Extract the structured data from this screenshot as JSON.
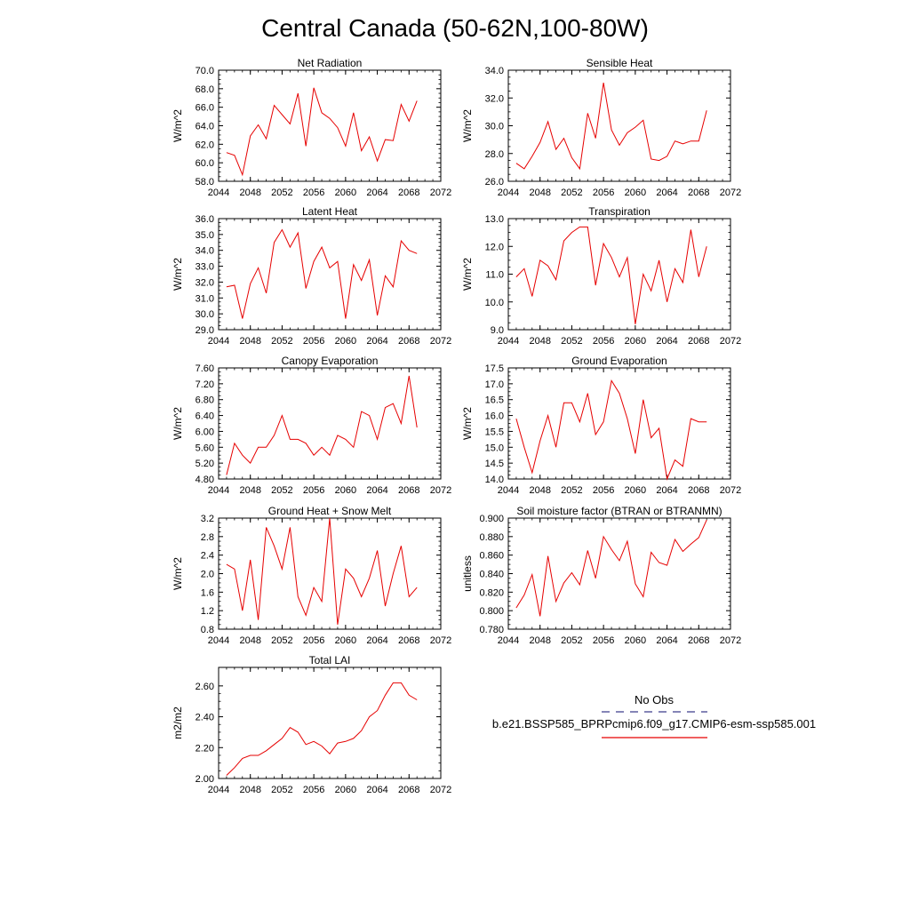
{
  "page_title": "Central Canada (50-62N,100-80W)",
  "legend": {
    "obs_label": "No Obs",
    "obs_color": "#3c3c8c",
    "model_label": "b.e21.BSSP585_BPRPcmip6.f09_g17.CMIP6-esm-ssp585.001",
    "model_color": "#e60000"
  },
  "chart_data": [
    {
      "type": "line",
      "title": "Net Radiation",
      "ylabel": "W/m^2",
      "xlim": [
        2044,
        2072
      ],
      "ylim": [
        58,
        70
      ],
      "xticks": [
        2044,
        2048,
        2052,
        2056,
        2060,
        2064,
        2068,
        2072
      ],
      "xtick_labels": [
        "2044",
        "2048",
        "2052",
        "2056",
        "2060",
        "2064",
        "2068",
        "2072"
      ],
      "yticks": [
        58,
        60,
        62,
        64,
        66,
        68,
        70
      ],
      "ytick_labels": [
        "58.0",
        "60.0",
        "62.0",
        "64.0",
        "66.0",
        "68.0",
        "70.0"
      ],
      "series": [
        {
          "color": "#e60000",
          "x": [
            2045,
            2046,
            2047,
            2048,
            2049,
            2050,
            2051,
            2052,
            2053,
            2054,
            2055,
            2056,
            2057,
            2058,
            2059,
            2060,
            2061,
            2062,
            2063,
            2064,
            2065,
            2066,
            2067,
            2068,
            2069
          ],
          "y": [
            61.1,
            60.8,
            58.7,
            62.9,
            64.1,
            62.6,
            66.2,
            65.2,
            64.2,
            67.5,
            61.8,
            68.1,
            65.4,
            64.8,
            63.8,
            61.8,
            65.4,
            61.3,
            62.8,
            60.2,
            62.5,
            62.4,
            66.3,
            64.5,
            66.7
          ]
        }
      ]
    },
    {
      "type": "line",
      "title": "Sensible Heat",
      "ylabel": "W/m^2",
      "xlim": [
        2044,
        2072
      ],
      "ylim": [
        26,
        34
      ],
      "xticks": [
        2044,
        2048,
        2052,
        2056,
        2060,
        2064,
        2068,
        2072
      ],
      "xtick_labels": [
        "2044",
        "2048",
        "2052",
        "2056",
        "2060",
        "2064",
        "2068",
        "2072"
      ],
      "yticks": [
        26,
        28,
        30,
        32,
        34
      ],
      "ytick_labels": [
        "26.0",
        "28.0",
        "30.0",
        "32.0",
        "34.0"
      ],
      "series": [
        {
          "color": "#e60000",
          "x": [
            2045,
            2046,
            2047,
            2048,
            2049,
            2050,
            2051,
            2052,
            2053,
            2054,
            2055,
            2056,
            2057,
            2058,
            2059,
            2060,
            2061,
            2062,
            2063,
            2064,
            2065,
            2066,
            2067,
            2068,
            2069
          ],
          "y": [
            27.3,
            26.9,
            27.8,
            28.8,
            30.3,
            28.3,
            29.1,
            27.7,
            26.9,
            30.9,
            29.1,
            33.1,
            29.7,
            28.6,
            29.5,
            29.9,
            30.4,
            27.6,
            27.5,
            27.8,
            28.9,
            28.7,
            28.9,
            28.9,
            31.1
          ]
        }
      ]
    },
    {
      "type": "line",
      "title": "Latent Heat",
      "ylabel": "W/m^2",
      "xlim": [
        2044,
        2072
      ],
      "ylim": [
        29,
        36
      ],
      "xticks": [
        2044,
        2048,
        2052,
        2056,
        2060,
        2064,
        2068,
        2072
      ],
      "xtick_labels": [
        "2044",
        "2048",
        "2052",
        "2056",
        "2060",
        "2064",
        "2068",
        "2072"
      ],
      "yticks": [
        29,
        30,
        31,
        32,
        33,
        34,
        35,
        36
      ],
      "ytick_labels": [
        "29.0",
        "30.0",
        "31.0",
        "32.0",
        "33.0",
        "34.0",
        "35.0",
        "36.0"
      ],
      "series": [
        {
          "color": "#e60000",
          "x": [
            2045,
            2046,
            2047,
            2048,
            2049,
            2050,
            2051,
            2052,
            2053,
            2054,
            2055,
            2056,
            2057,
            2058,
            2059,
            2060,
            2061,
            2062,
            2063,
            2064,
            2065,
            2066,
            2067,
            2068,
            2069
          ],
          "y": [
            31.7,
            31.8,
            29.7,
            31.9,
            32.9,
            31.3,
            34.5,
            35.3,
            34.2,
            35.1,
            31.6,
            33.3,
            34.2,
            32.9,
            33.3,
            29.7,
            33.1,
            32.1,
            33.4,
            29.9,
            32.4,
            31.7,
            34.6,
            34.0,
            33.8
          ]
        }
      ]
    },
    {
      "type": "line",
      "title": "Transpiration",
      "ylabel": "W/m^2",
      "xlim": [
        2044,
        2072
      ],
      "ylim": [
        9,
        13
      ],
      "xticks": [
        2044,
        2048,
        2052,
        2056,
        2060,
        2064,
        2068,
        2072
      ],
      "xtick_labels": [
        "2044",
        "2048",
        "2052",
        "2056",
        "2060",
        "2064",
        "2068",
        "2072"
      ],
      "yticks": [
        9,
        10,
        11,
        12,
        13
      ],
      "ytick_labels": [
        "9.0",
        "10.0",
        "11.0",
        "12.0",
        "13.0"
      ],
      "series": [
        {
          "color": "#e60000",
          "x": [
            2045,
            2046,
            2047,
            2048,
            2049,
            2050,
            2051,
            2052,
            2053,
            2054,
            2055,
            2056,
            2057,
            2058,
            2059,
            2060,
            2061,
            2062,
            2063,
            2064,
            2065,
            2066,
            2067,
            2068,
            2069
          ],
          "y": [
            10.9,
            11.2,
            10.2,
            11.5,
            11.3,
            10.8,
            12.2,
            12.5,
            12.7,
            12.7,
            10.6,
            12.1,
            11.6,
            10.9,
            11.6,
            9.2,
            11.0,
            10.4,
            11.5,
            10.0,
            11.2,
            10.7,
            12.6,
            10.9,
            12.0
          ]
        }
      ]
    },
    {
      "type": "line",
      "title": "Canopy Evaporation",
      "ylabel": "W/m^2",
      "xlim": [
        2044,
        2072
      ],
      "ylim": [
        4.8,
        7.6
      ],
      "xticks": [
        2044,
        2048,
        2052,
        2056,
        2060,
        2064,
        2068,
        2072
      ],
      "xtick_labels": [
        "2044",
        "2048",
        "2052",
        "2056",
        "2060",
        "2064",
        "2068",
        "2072"
      ],
      "yticks": [
        4.8,
        5.2,
        5.6,
        6.0,
        6.4,
        6.8,
        7.2,
        7.6
      ],
      "ytick_labels": [
        "4.80",
        "5.20",
        "5.60",
        "6.00",
        "6.40",
        "6.80",
        "7.20",
        "7.60"
      ],
      "series": [
        {
          "color": "#e60000",
          "x": [
            2045,
            2046,
            2047,
            2048,
            2049,
            2050,
            2051,
            2052,
            2053,
            2054,
            2055,
            2056,
            2057,
            2058,
            2059,
            2060,
            2061,
            2062,
            2063,
            2064,
            2065,
            2066,
            2067,
            2068,
            2069
          ],
          "y": [
            4.9,
            5.7,
            5.4,
            5.2,
            5.6,
            5.6,
            5.9,
            6.4,
            5.8,
            5.8,
            5.7,
            5.4,
            5.6,
            5.4,
            5.9,
            5.8,
            5.6,
            6.5,
            6.4,
            5.8,
            6.6,
            6.7,
            6.2,
            7.4,
            6.1
          ]
        }
      ]
    },
    {
      "type": "line",
      "title": "Ground Evaporation",
      "ylabel": "W/m^2",
      "xlim": [
        2044,
        2072
      ],
      "ylim": [
        14,
        17.5
      ],
      "xticks": [
        2044,
        2048,
        2052,
        2056,
        2060,
        2064,
        2068,
        2072
      ],
      "xtick_labels": [
        "2044",
        "2048",
        "2052",
        "2056",
        "2060",
        "2064",
        "2068",
        "2072"
      ],
      "yticks": [
        14,
        14.5,
        15,
        15.5,
        16,
        16.5,
        17,
        17.5
      ],
      "ytick_labels": [
        "14.0",
        "14.5",
        "15.0",
        "15.5",
        "16.0",
        "16.5",
        "17.0",
        "17.5"
      ],
      "series": [
        {
          "color": "#e60000",
          "x": [
            2045,
            2046,
            2047,
            2048,
            2049,
            2050,
            2051,
            2052,
            2053,
            2054,
            2055,
            2056,
            2057,
            2058,
            2059,
            2060,
            2061,
            2062,
            2063,
            2064,
            2065,
            2066,
            2067,
            2068,
            2069
          ],
          "y": [
            15.9,
            15.0,
            14.2,
            15.2,
            16.0,
            15.0,
            16.4,
            16.4,
            15.8,
            16.7,
            15.4,
            15.8,
            17.1,
            16.7,
            15.9,
            14.8,
            16.5,
            15.3,
            15.6,
            14.0,
            14.6,
            14.4,
            15.9,
            15.8,
            15.8
          ]
        }
      ]
    },
    {
      "type": "line",
      "title": "Ground Heat + Snow Melt",
      "ylabel": "W/m^2",
      "xlim": [
        2044,
        2072
      ],
      "ylim": [
        0.8,
        3.2
      ],
      "xticks": [
        2044,
        2048,
        2052,
        2056,
        2060,
        2064,
        2068,
        2072
      ],
      "xtick_labels": [
        "2044",
        "2048",
        "2052",
        "2056",
        "2060",
        "2064",
        "2068",
        "2072"
      ],
      "yticks": [
        0.8,
        1.2,
        1.6,
        2.0,
        2.4,
        2.8,
        3.2
      ],
      "ytick_labels": [
        "0.8",
        "1.2",
        "1.6",
        "2.0",
        "2.4",
        "2.8",
        "3.2"
      ],
      "series": [
        {
          "color": "#e60000",
          "x": [
            2045,
            2046,
            2047,
            2048,
            2049,
            2050,
            2051,
            2052,
            2053,
            2054,
            2055,
            2056,
            2057,
            2058,
            2059,
            2060,
            2061,
            2062,
            2063,
            2064,
            2065,
            2066,
            2067,
            2068,
            2069
          ],
          "y": [
            2.2,
            2.1,
            1.2,
            2.3,
            1.0,
            3.0,
            2.6,
            2.1,
            3.0,
            1.5,
            1.1,
            1.7,
            1.4,
            3.2,
            0.9,
            2.1,
            1.9,
            1.5,
            1.9,
            2.5,
            1.3,
            2.0,
            2.6,
            1.5,
            1.7
          ]
        }
      ]
    },
    {
      "type": "line",
      "title": "Soil moisture factor (BTRAN or BTRANMN)",
      "ylabel": "unitless",
      "xlim": [
        2044,
        2072
      ],
      "ylim": [
        0.78,
        0.9
      ],
      "xticks": [
        2044,
        2048,
        2052,
        2056,
        2060,
        2064,
        2068,
        2072
      ],
      "xtick_labels": [
        "2044",
        "2048",
        "2052",
        "2056",
        "2060",
        "2064",
        "2068",
        "2072"
      ],
      "yticks": [
        0.78,
        0.8,
        0.82,
        0.84,
        0.86,
        0.88,
        0.9
      ],
      "ytick_labels": [
        "0.780",
        "0.800",
        "0.820",
        "0.840",
        "0.860",
        "0.880",
        "0.900"
      ],
      "series": [
        {
          "color": "#e60000",
          "x": [
            2045,
            2046,
            2047,
            2048,
            2049,
            2050,
            2051,
            2052,
            2053,
            2054,
            2055,
            2056,
            2057,
            2058,
            2059,
            2060,
            2061,
            2062,
            2063,
            2064,
            2065,
            2066,
            2067,
            2068,
            2069
          ],
          "y": [
            0.803,
            0.817,
            0.839,
            0.794,
            0.859,
            0.81,
            0.83,
            0.841,
            0.828,
            0.865,
            0.835,
            0.88,
            0.866,
            0.854,
            0.875,
            0.829,
            0.815,
            0.863,
            0.852,
            0.849,
            0.877,
            0.864,
            0.872,
            0.879,
            0.898
          ]
        }
      ]
    },
    {
      "type": "line",
      "title": "Total LAI",
      "ylabel": "m2/m2",
      "xlim": [
        2044,
        2072
      ],
      "ylim": [
        2.0,
        2.72
      ],
      "xticks": [
        2044,
        2048,
        2052,
        2056,
        2060,
        2064,
        2068,
        2072
      ],
      "xtick_labels": [
        "2044",
        "2048",
        "2052",
        "2056",
        "2060",
        "2064",
        "2068",
        "2072"
      ],
      "yticks": [
        2.0,
        2.2,
        2.4,
        2.6
      ],
      "ytick_labels": [
        "2.00",
        "2.20",
        "2.40",
        "2.60"
      ],
      "series": [
        {
          "color": "#e60000",
          "x": [
            2045,
            2046,
            2047,
            2048,
            2049,
            2050,
            2051,
            2052,
            2053,
            2054,
            2055,
            2056,
            2057,
            2058,
            2059,
            2060,
            2061,
            2062,
            2063,
            2064,
            2065,
            2066,
            2067,
            2068,
            2069
          ],
          "y": [
            2.02,
            2.07,
            2.13,
            2.15,
            2.15,
            2.18,
            2.22,
            2.26,
            2.33,
            2.3,
            2.22,
            2.24,
            2.21,
            2.16,
            2.23,
            2.24,
            2.26,
            2.31,
            2.4,
            2.44,
            2.54,
            2.62,
            2.62,
            2.54,
            2.51
          ]
        }
      ]
    }
  ]
}
